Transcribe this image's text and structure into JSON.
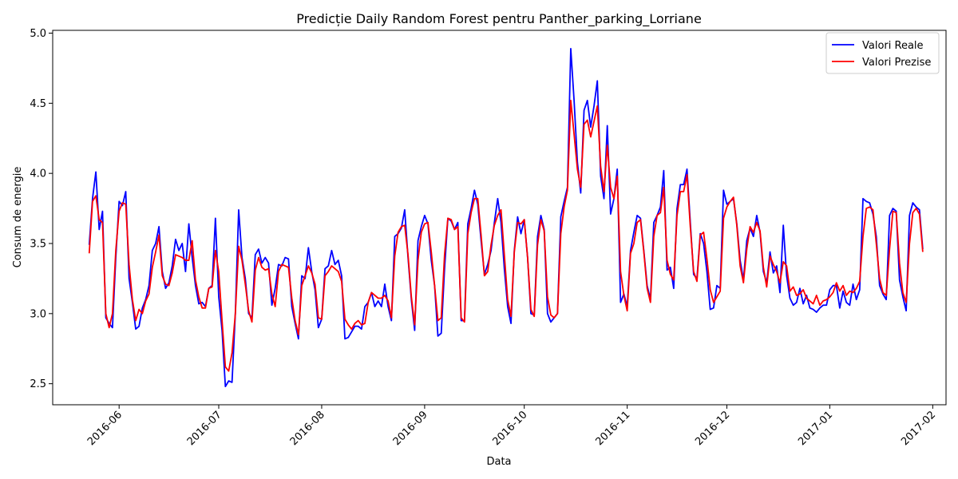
{
  "chart_data": {
    "type": "line",
    "title": "Predicție Daily Random Forest pentru Panther_parking_Lorriane",
    "xlabel": "Data",
    "ylabel": "Consum de energie",
    "xlim": [
      "2016-05-12",
      "2017-02-05"
    ],
    "ylim": [
      2.35,
      5.02
    ],
    "x_ticks": [
      "2016-06-01",
      "2016-07-01",
      "2016-08-01",
      "2016-09-01",
      "2016-10-01",
      "2016-11-01",
      "2016-12-01",
      "2017-01-01",
      "2017-02-01"
    ],
    "x_tick_labels": [
      "2016-06",
      "2016-07",
      "2016-08",
      "2016-09",
      "2016-10",
      "2016-11",
      "2016-12",
      "2017-01",
      "2017-02"
    ],
    "y_ticks": [
      2.5,
      3.0,
      3.5,
      4.0,
      4.5,
      5.0
    ],
    "y_tick_labels": [
      "2.5",
      "3.0",
      "3.5",
      "4.0",
      "4.5",
      "5.0"
    ],
    "grid": false,
    "legend_position": "top-right",
    "x_start": "2016-05-23",
    "x_step_days": 1,
    "series": [
      {
        "name": "Valori Reale",
        "color": "#0000ff",
        "values": [
          3.49,
          3.82,
          4.01,
          3.6,
          3.73,
          2.97,
          2.93,
          2.9,
          3.4,
          3.8,
          3.77,
          3.87,
          3.25,
          3.08,
          2.89,
          2.91,
          3.04,
          3.1,
          3.2,
          3.45,
          3.5,
          3.62,
          3.3,
          3.18,
          3.22,
          3.34,
          3.53,
          3.45,
          3.5,
          3.3,
          3.64,
          3.4,
          3.2,
          3.07,
          3.08,
          3.05,
          3.18,
          3.2,
          3.68,
          3.12,
          2.88,
          2.48,
          2.52,
          2.51,
          3.0,
          3.74,
          3.4,
          3.25,
          3.0,
          2.97,
          3.42,
          3.46,
          3.36,
          3.4,
          3.36,
          3.06,
          3.18,
          3.35,
          3.34,
          3.4,
          3.39,
          3.05,
          2.93,
          2.82,
          3.27,
          3.25,
          3.47,
          3.3,
          3.17,
          2.9,
          2.96,
          3.32,
          3.34,
          3.45,
          3.35,
          3.38,
          3.27,
          2.82,
          2.83,
          2.87,
          2.91,
          2.91,
          2.89,
          3.05,
          3.08,
          3.15,
          3.05,
          3.09,
          3.05,
          3.21,
          3.05,
          2.95,
          3.55,
          3.57,
          3.61,
          3.74,
          3.4,
          3.1,
          2.88,
          3.52,
          3.62,
          3.7,
          3.64,
          3.38,
          3.2,
          2.84,
          2.86,
          3.32,
          3.68,
          3.66,
          3.6,
          3.65,
          2.95,
          2.95,
          3.64,
          3.75,
          3.88,
          3.78,
          3.52,
          3.28,
          3.35,
          3.45,
          3.65,
          3.82,
          3.65,
          3.32,
          3.05,
          2.93,
          3.45,
          3.69,
          3.57,
          3.67,
          3.4,
          3.0,
          2.99,
          3.55,
          3.7,
          3.6,
          3.0,
          2.94,
          2.97,
          3.0,
          3.69,
          3.8,
          3.9,
          4.89,
          4.52,
          4.08,
          3.86,
          4.45,
          4.52,
          4.33,
          4.48,
          4.66,
          3.98,
          3.82,
          4.34,
          3.71,
          3.82,
          4.03,
          3.08,
          3.14,
          3.05,
          3.45,
          3.58,
          3.7,
          3.68,
          3.45,
          3.2,
          3.1,
          3.65,
          3.7,
          3.76,
          4.02,
          3.31,
          3.33,
          3.18,
          3.75,
          3.92,
          3.92,
          4.03,
          3.65,
          3.28,
          3.25,
          3.57,
          3.5,
          3.3,
          3.03,
          3.04,
          3.2,
          3.18,
          3.88,
          3.78,
          3.8,
          3.82,
          3.64,
          3.38,
          3.24,
          3.52,
          3.61,
          3.55,
          3.7,
          3.58,
          3.3,
          3.22,
          3.44,
          3.29,
          3.34,
          3.15,
          3.63,
          3.27,
          3.11,
          3.06,
          3.08,
          3.18,
          3.07,
          3.13,
          3.04,
          3.03,
          3.01,
          3.04,
          3.06,
          3.06,
          3.17,
          3.2,
          3.2,
          3.04,
          3.16,
          3.08,
          3.06,
          3.21,
          3.1,
          3.17,
          3.82,
          3.8,
          3.79,
          3.71,
          3.55,
          3.2,
          3.14,
          3.1,
          3.7,
          3.75,
          3.73,
          3.24,
          3.12,
          3.02,
          3.7,
          3.79,
          3.76,
          3.74,
          3.46
        ]
      },
      {
        "name": "Valori Prezise",
        "color": "#ff0000",
        "values": [
          3.43,
          3.8,
          3.84,
          3.67,
          3.65,
          3.0,
          2.9,
          3.0,
          3.45,
          3.73,
          3.79,
          3.78,
          3.35,
          3.1,
          2.95,
          3.03,
          3.0,
          3.09,
          3.14,
          3.33,
          3.44,
          3.56,
          3.27,
          3.21,
          3.2,
          3.29,
          3.42,
          3.41,
          3.4,
          3.38,
          3.38,
          3.52,
          3.24,
          3.12,
          3.04,
          3.04,
          3.18,
          3.19,
          3.45,
          3.3,
          2.95,
          2.62,
          2.59,
          2.72,
          3.0,
          3.48,
          3.38,
          3.21,
          3.02,
          2.94,
          3.31,
          3.4,
          3.33,
          3.31,
          3.32,
          3.14,
          3.05,
          3.3,
          3.35,
          3.34,
          3.33,
          3.11,
          2.95,
          2.85,
          3.2,
          3.27,
          3.34,
          3.29,
          3.21,
          2.97,
          2.96,
          3.27,
          3.3,
          3.34,
          3.32,
          3.3,
          3.23,
          2.96,
          2.92,
          2.89,
          2.93,
          2.95,
          2.92,
          2.93,
          3.08,
          3.15,
          3.13,
          3.11,
          3.11,
          3.13,
          3.09,
          2.97,
          3.41,
          3.58,
          3.62,
          3.63,
          3.42,
          3.12,
          2.92,
          3.38,
          3.58,
          3.64,
          3.65,
          3.44,
          3.2,
          2.95,
          2.97,
          3.42,
          3.68,
          3.67,
          3.6,
          3.62,
          2.97,
          2.94,
          3.57,
          3.72,
          3.82,
          3.82,
          3.56,
          3.27,
          3.3,
          3.49,
          3.63,
          3.7,
          3.74,
          3.42,
          3.1,
          2.98,
          3.44,
          3.65,
          3.64,
          3.67,
          3.4,
          3.03,
          2.98,
          3.49,
          3.67,
          3.59,
          3.12,
          2.99,
          2.97,
          3.0,
          3.57,
          3.76,
          3.88,
          4.52,
          4.28,
          4.03,
          3.9,
          4.35,
          4.38,
          4.26,
          4.37,
          4.48,
          4.05,
          3.87,
          4.2,
          3.9,
          3.82,
          3.98,
          3.3,
          3.13,
          3.02,
          3.43,
          3.5,
          3.65,
          3.67,
          3.44,
          3.18,
          3.08,
          3.55,
          3.7,
          3.72,
          3.9,
          3.38,
          3.28,
          3.24,
          3.7,
          3.87,
          3.87,
          3.99,
          3.62,
          3.3,
          3.23,
          3.56,
          3.58,
          3.39,
          3.17,
          3.08,
          3.12,
          3.16,
          3.68,
          3.76,
          3.8,
          3.83,
          3.63,
          3.34,
          3.22,
          3.46,
          3.62,
          3.58,
          3.65,
          3.59,
          3.33,
          3.19,
          3.41,
          3.35,
          3.3,
          3.22,
          3.37,
          3.34,
          3.16,
          3.19,
          3.13,
          3.14,
          3.17,
          3.11,
          3.09,
          3.07,
          3.13,
          3.06,
          3.09,
          3.1,
          3.12,
          3.15,
          3.22,
          3.16,
          3.2,
          3.13,
          3.16,
          3.15,
          3.18,
          3.23,
          3.55,
          3.75,
          3.76,
          3.74,
          3.5,
          3.25,
          3.15,
          3.13,
          3.46,
          3.73,
          3.72,
          3.36,
          3.15,
          3.08,
          3.5,
          3.72,
          3.75,
          3.71,
          3.44
        ]
      }
    ]
  }
}
